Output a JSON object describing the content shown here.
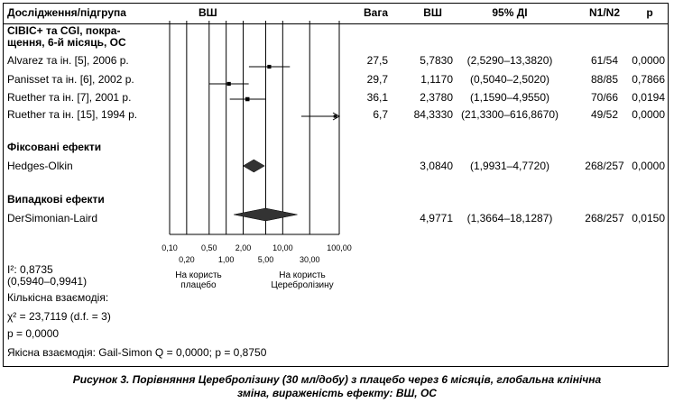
{
  "header": {
    "study_col": "Дослідження/підгрупа",
    "plot_col": "ВШ",
    "weight_col": "Вага",
    "or_col": "ВШ",
    "ci_col": "95% ДІ",
    "n_col": "N1/N2",
    "p_col": "p"
  },
  "subgroup_title_line1": "CIBIC+ та CGI, покра-",
  "subgroup_title_line2": "щення, 6-й місяць, ОС",
  "studies": [
    {
      "name": "Alvarez та ін. [5], 2006 р.",
      "weight": "27,5",
      "or_text": "5,7830",
      "ci_text": "(2,5290–13,3820)",
      "n": "61/54",
      "p": "0,0000",
      "or": 5.783,
      "lo": 2.529,
      "hi": 13.382
    },
    {
      "name": "Panisset та ін. [6], 2002 р.",
      "weight": "29,7",
      "or_text": "1,1170",
      "ci_text": "(0,5040–2,5020)",
      "n": "88/85",
      "p": "0,7866",
      "or": 1.117,
      "lo": 0.504,
      "hi": 2.502
    },
    {
      "name": "Ruether та ін. [7], 2001 р.",
      "weight": "36,1",
      "or_text": "2,3780",
      "ci_text": "(1,1590–4,9550)",
      "n": "70/66",
      "p": "0,0194",
      "or": 2.378,
      "lo": 1.159,
      "hi": 4.955
    },
    {
      "name": "Ruether та ін. [15], 1994 р.",
      "weight": "6,7",
      "or_text": "84,3330",
      "ci_text": "(21,3300–616,8670)",
      "n": "49/52",
      "p": "0,0000",
      "or": 84.333,
      "lo": 21.33,
      "hi": 616.867
    }
  ],
  "fixed": {
    "title": "Фіксовані ефекти",
    "method": "Hedges-Olkin",
    "or_text": "3,0840",
    "ci_text": "(1,9931–4,7720)",
    "n": "268/257",
    "p": "0,0000",
    "or": 3.084,
    "lo": 1.9931,
    "hi": 4.772
  },
  "random": {
    "title": "Випадкові ефекти",
    "method": "DerSimonian-Laird",
    "or_text": "4,9771",
    "ci_text": "(1,3664–18,1287)",
    "n": "268/257",
    "p": "0,0150",
    "or": 4.9771,
    "lo": 1.3664,
    "hi": 18.1287
  },
  "axis": {
    "ticks_major": [
      "0,10",
      "0,50",
      "2,00",
      "10,00",
      "100,00"
    ],
    "ticks_minor": [
      "0,20",
      "1,00",
      "5,00",
      "30,00"
    ],
    "label_left_1": "На користь",
    "label_left_2": "плацебо",
    "label_right_1": "На користь",
    "label_right_2": "Церебролізину"
  },
  "chart_data": {
    "type": "forest",
    "scale": "log",
    "xlim": [
      0.1,
      100
    ],
    "x_ticks": [
      0.1,
      0.2,
      0.5,
      1,
      2,
      5,
      10,
      30,
      100
    ],
    "reference_line": 1,
    "categories": [
      "Alvarez та ін. [5], 2006 р.",
      "Panisset та ін. [6], 2002 р.",
      "Ruether та ін. [7], 2001 р.",
      "Ruether та ін. [15], 1994 р.",
      "Hedges-Olkin",
      "DerSimonian-Laird"
    ],
    "series": [
      {
        "name": "ВШ",
        "values": [
          5.783,
          1.117,
          2.378,
          84.333,
          3.084,
          4.9771
        ]
      },
      {
        "name": "95% ДІ lower",
        "values": [
          2.529,
          0.504,
          1.159,
          21.33,
          1.9931,
          1.3664
        ]
      },
      {
        "name": "95% ДІ upper",
        "values": [
          13.382,
          2.502,
          4.955,
          616.867,
          4.772,
          18.1287
        ]
      }
    ],
    "weights": [
      27.5,
      29.7,
      36.1,
      6.7
    ]
  },
  "stats": {
    "i2": "I²: 0,8735",
    "i2_ci": "(0,5940–0,9941)",
    "quant_label": "Кількісна взаємодія:",
    "chi2": "χ² = 23,7119 (d.f. = 3)",
    "chi2_p": "p = 0,0000",
    "qual": "Якісна взаємодія: Gail-Simon Q = 0,0000; p = 0,8750"
  },
  "caption": {
    "line1": "Рисунок 3. Порівняння Церебролізину (30 мл/добу) з плацебо через 6 місяців, глобальна клінічна",
    "line2": "зміна, вираженість ефекту: ВШ, ОС"
  }
}
